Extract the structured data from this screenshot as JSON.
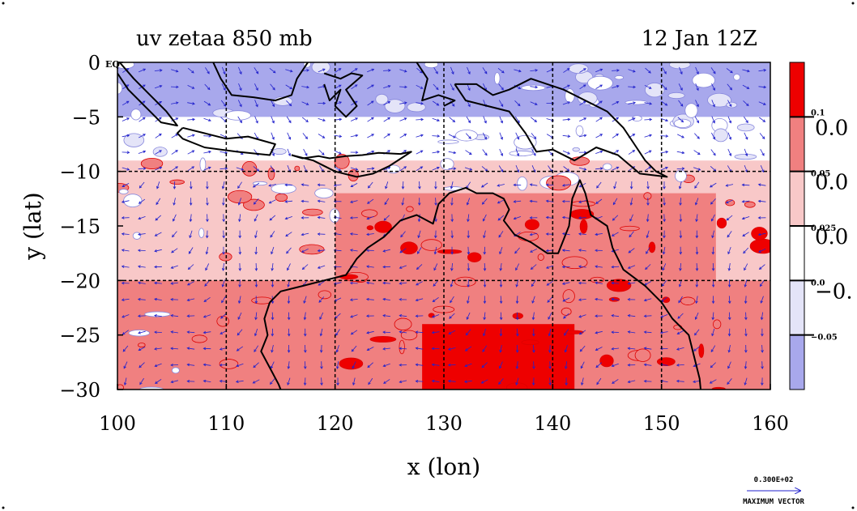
{
  "figure": {
    "title_left": "uv zetaa 850 mb",
    "title_right": "12 Jan 12Z",
    "max_vector_value": "0.300E+02",
    "max_vector_label": "MAXIMUM VECTOR"
  },
  "chart_data": {
    "type": "contour-map",
    "title": "uv zetaa 850 mb",
    "subtitle": "12 Jan 12Z",
    "xlabel": "x (lon)",
    "ylabel": "y (lat)",
    "xlim": [
      100,
      160
    ],
    "ylim": [
      -30,
      0
    ],
    "x_ticks": [
      100,
      110,
      120,
      130,
      140,
      150,
      160
    ],
    "y_ticks": [
      0,
      -5,
      -10,
      -15,
      -20,
      -25,
      -30
    ],
    "x_tick_labels": [
      "100",
      "110",
      "120",
      "130",
      "140",
      "150",
      "160"
    ],
    "y_tick_labels": [
      "0",
      "−5",
      "−10",
      "−15",
      "−20",
      "−25",
      "−30"
    ],
    "y_zero_suffix": "EQ",
    "grid_x": [
      110,
      120,
      130,
      140,
      150
    ],
    "grid_y": [
      -10,
      -20
    ],
    "colorbar": {
      "levels": [
        {
          "color": "#ee0000",
          "label_small": "0.1",
          "label_big": "0.0"
        },
        {
          "color": "#f08080",
          "label_small": "0.05",
          "label_big": "0.0"
        },
        {
          "color": "#f8c8c8",
          "label_small": "0.025",
          "label_big": "0.0"
        },
        {
          "color": "#ffffff",
          "label_small": "0.0",
          "label_big": "−0."
        },
        {
          "color": "#e4e4f8",
          "label_small": "−0.05",
          "label_big": ""
        },
        {
          "color": "#a8a8ec",
          "label_small": "",
          "label_big": ""
        }
      ]
    },
    "field_regions": [
      {
        "level": 5,
        "lon": [
          100,
          160
        ],
        "lat": [
          -10,
          0
        ]
      },
      {
        "level": 3,
        "lon": [
          100,
          160
        ],
        "lat": [
          -15,
          -5
        ]
      },
      {
        "level": 2,
        "lon": [
          100,
          160
        ],
        "lat": [
          -20,
          -9
        ]
      },
      {
        "level": 1,
        "lon": [
          100,
          160
        ],
        "lat": [
          -30,
          -20
        ]
      },
      {
        "level": 1,
        "lon": [
          120,
          155
        ],
        "lat": [
          -30,
          -12
        ]
      },
      {
        "level": 0,
        "lon": [
          128,
          142
        ],
        "lat": [
          -30,
          -24
        ]
      }
    ],
    "vector_color": "#2222cc",
    "vector_spacing_deg": 1.5,
    "coastline": [
      [
        [
          114,
          -22
        ],
        [
          115,
          -21
        ],
        [
          117,
          -20.5
        ],
        [
          119,
          -20
        ],
        [
          121,
          -19.5
        ],
        [
          122,
          -18
        ],
        [
          123,
          -17
        ],
        [
          124.5,
          -16
        ],
        [
          126,
          -14.5
        ],
        [
          127.5,
          -14
        ],
        [
          129,
          -14.8
        ],
        [
          129.5,
          -13
        ],
        [
          130.5,
          -12
        ],
        [
          132,
          -11.5
        ],
        [
          133,
          -12
        ],
        [
          134.5,
          -12
        ],
        [
          135.5,
          -12.5
        ],
        [
          136,
          -13.5
        ],
        [
          135.5,
          -14.5
        ],
        [
          136.5,
          -15.8
        ],
        [
          138,
          -16.5
        ],
        [
          139.5,
          -17.5
        ],
        [
          140.5,
          -17.5
        ],
        [
          141.5,
          -15
        ],
        [
          141.8,
          -12.5
        ],
        [
          142.5,
          -10.8
        ],
        [
          143,
          -12
        ],
        [
          143.5,
          -14
        ],
        [
          145,
          -15
        ],
        [
          145.5,
          -17
        ],
        [
          146.5,
          -19
        ],
        [
          148.5,
          -20.5
        ],
        [
          150,
          -22
        ],
        [
          151,
          -23.5
        ],
        [
          152.5,
          -25
        ],
        [
          153,
          -27
        ],
        [
          153.5,
          -29
        ],
        [
          153.6,
          -30
        ]
      ],
      [
        [
          114,
          -22
        ],
        [
          113.5,
          -23.5
        ],
        [
          113.8,
          -25
        ],
        [
          113.2,
          -26.5
        ],
        [
          114,
          -28
        ],
        [
          114.8,
          -29.5
        ],
        [
          115,
          -30
        ]
      ],
      [
        [
          131,
          -2
        ],
        [
          133,
          -2
        ],
        [
          134.5,
          -3
        ],
        [
          136,
          -2.5
        ],
        [
          138,
          -1.5
        ],
        [
          141,
          -2.5
        ],
        [
          143,
          -3.5
        ],
        [
          145,
          -4.5
        ],
        [
          146.5,
          -6
        ],
        [
          147.5,
          -7.5
        ],
        [
          148.5,
          -9
        ],
        [
          149.5,
          -10
        ],
        [
          150.5,
          -10.5
        ],
        [
          148,
          -10.2
        ],
        [
          146,
          -8.5
        ],
        [
          144,
          -7.8
        ],
        [
          142,
          -9
        ],
        [
          140,
          -8
        ],
        [
          138.5,
          -8.2
        ],
        [
          137.5,
          -6.5
        ],
        [
          136,
          -4.5
        ],
        [
          134,
          -4
        ],
        [
          132,
          -3.5
        ],
        [
          131,
          -2
        ]
      ],
      [
        [
          106,
          -6
        ],
        [
          108,
          -6.5
        ],
        [
          110,
          -7
        ],
        [
          112,
          -6.8
        ],
        [
          114.5,
          -7.5
        ],
        [
          114,
          -8.5
        ],
        [
          111,
          -8.2
        ],
        [
          108,
          -7.8
        ],
        [
          106,
          -7
        ],
        [
          105.5,
          -6.5
        ],
        [
          106,
          -6
        ]
      ],
      [
        [
          100.2,
          0
        ],
        [
          101.5,
          -1.5
        ],
        [
          103,
          -3
        ],
        [
          104.5,
          -4.5
        ],
        [
          105.5,
          -5.8
        ],
        [
          104,
          -5.5
        ],
        [
          102.5,
          -4
        ],
        [
          101,
          -2.5
        ],
        [
          100,
          -1
        ]
      ],
      [
        [
          108.8,
          0
        ],
        [
          109.5,
          -1.5
        ],
        [
          110.5,
          -3
        ],
        [
          112.5,
          -3.2
        ],
        [
          114.5,
          -3.5
        ],
        [
          116,
          -3
        ],
        [
          116.5,
          -1.5
        ],
        [
          117.5,
          0
        ]
      ],
      [
        [
          119,
          -1
        ],
        [
          120.5,
          -1.5
        ],
        [
          121.5,
          -1
        ],
        [
          122.5,
          -1.2
        ],
        [
          121,
          -2.5
        ],
        [
          122,
          -4
        ],
        [
          121,
          -5
        ],
        [
          120,
          -4
        ],
        [
          120.5,
          -2.5
        ],
        [
          119.5,
          -3.5
        ],
        [
          119,
          -2
        ]
      ],
      [
        [
          116,
          -8.5
        ],
        [
          117,
          -8.8
        ],
        [
          118.5,
          -8.6
        ],
        [
          119.5,
          -8.8
        ],
        [
          121,
          -8.6
        ],
        [
          122.5,
          -8.5
        ],
        [
          124,
          -8.3
        ],
        [
          126,
          -8.4
        ],
        [
          127,
          -8.2
        ],
        [
          125,
          -9.5
        ],
        [
          123.5,
          -10.2
        ],
        [
          122,
          -10.5
        ],
        [
          120,
          -10
        ],
        [
          118,
          -9
        ],
        [
          116,
          -8.5
        ]
      ],
      [
        [
          127.5,
          0
        ],
        [
          128.5,
          -1.5
        ],
        [
          128,
          -3.5
        ],
        [
          129.5,
          -3
        ],
        [
          131,
          -3.5
        ],
        [
          130,
          -4
        ]
      ]
    ]
  }
}
